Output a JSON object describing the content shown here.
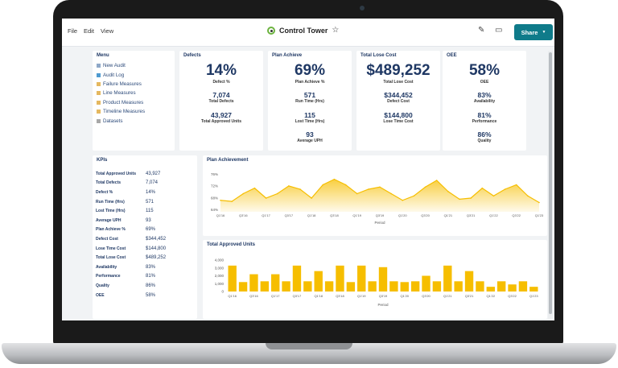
{
  "menubar": {
    "file": "File",
    "edit": "Edit",
    "view": "View"
  },
  "title": "Control Tower",
  "share_label": "Share",
  "sidebar": {
    "title": "Menu",
    "items": [
      {
        "label": "New Audit",
        "icon": "document-icon"
      },
      {
        "label": "Audit Log",
        "icon": "log-icon"
      },
      {
        "label": "Failure Measures",
        "icon": "folder-icon"
      },
      {
        "label": "Line Measures",
        "icon": "folder-icon"
      },
      {
        "label": "Product Measures",
        "icon": "folder-icon"
      },
      {
        "label": "Timeline Measures",
        "icon": "folder-icon"
      },
      {
        "label": "Datasets",
        "icon": "folder-icon"
      }
    ]
  },
  "cards": {
    "defects": {
      "title": "Defects",
      "main": "14%",
      "main_label": "Defect %",
      "sub1": "7,074",
      "sub1_label": "Total Defects",
      "sub2": "43,927",
      "sub2_label": "Total Approved Units"
    },
    "plan": {
      "title": "Plan Achieve",
      "main": "69%",
      "main_label": "Plan Achieve %",
      "sub1": "571",
      "sub1_label": "Run Time (Hrs)",
      "sub2": "115",
      "sub2_label": "Lost Time (Hrs)",
      "sub3": "93",
      "sub3_label": "Average UPH"
    },
    "cost": {
      "title": "Total Lose Cost",
      "main": "$489,252",
      "main_label": "Total Lose Cost",
      "sub1": "$344,452",
      "sub1_label": "Defect Cost",
      "sub2": "$144,800",
      "sub2_label": "Lose Time Cost"
    },
    "oee": {
      "title": "OEE",
      "main": "58%",
      "main_label": "OEE",
      "sub1": "83%",
      "sub1_label": "Availability",
      "sub2": "81%",
      "sub2_label": "Performance",
      "sub3": "86%",
      "sub3_label": "Quality"
    }
  },
  "kpis": {
    "title": "KPIs",
    "rows": [
      {
        "label": "Total Approved Units",
        "value": "43,927"
      },
      {
        "label": "Total Defects",
        "value": "7,074"
      },
      {
        "label": "Defect %",
        "value": "14%"
      },
      {
        "label": "Run Time (Hrs)",
        "value": "571"
      },
      {
        "label": "Lost Time (Hrs)",
        "value": "115"
      },
      {
        "label": "Average UPH",
        "value": "93"
      },
      {
        "label": "Plan Achieve %",
        "value": "69%"
      },
      {
        "label": "Defect Cost",
        "value": "$344,452"
      },
      {
        "label": "Lose Time Cost",
        "value": "$144,800"
      },
      {
        "label": "Total Lose Cost",
        "value": "$489,252"
      },
      {
        "label": "Availability",
        "value": "83%"
      },
      {
        "label": "Performance",
        "value": "81%"
      },
      {
        "label": "Quality",
        "value": "86%"
      },
      {
        "label": "OEE",
        "value": "58%"
      }
    ]
  },
  "colors": {
    "accent": "#0f7b8a",
    "chart": "#f6be00",
    "navy": "#1f3864"
  },
  "chart_data": [
    {
      "type": "area",
      "title": "Plan Achievement",
      "xlabel": "Period",
      "ylabel": "",
      "yticks": [
        "76%",
        "72%",
        "68%",
        "64%"
      ],
      "ylim": [
        62,
        78
      ],
      "categories": [
        "Q1'16",
        "Q2'16",
        "Q3'16",
        "Q4'16",
        "Q1'17",
        "Q2'17",
        "Q3'17",
        "Q4'17",
        "Q1'18",
        "Q2'18",
        "Q3'18",
        "Q4'18",
        "Q1'19",
        "Q2'19",
        "Q3'19",
        "Q4'19",
        "Q1'20",
        "Q2'20",
        "Q3'20",
        "Q4'20",
        "Q1'21",
        "Q2'21",
        "Q3'21",
        "Q4'21",
        "Q1'22",
        "Q2'22",
        "Q3'22",
        "Q4'22",
        "Q1'23"
      ],
      "xticklabels": [
        "Q1'16",
        "Q3'16",
        "Q1'17",
        "Q3'17",
        "Q1'18",
        "Q3'18",
        "Q1'19",
        "Q3'19",
        "Q1'20",
        "Q3'20",
        "Q1'21",
        "Q3'21",
        "Q1'22",
        "Q3'22",
        "Q1'23"
      ],
      "values": [
        65,
        64.5,
        68,
        70.5,
        66,
        68,
        71.5,
        70,
        66,
        72,
        74.5,
        72,
        68,
        70,
        71,
        68,
        65,
        67,
        71,
        74,
        69,
        65.5,
        66,
        70.5,
        67,
        70,
        72,
        67,
        64
      ]
    },
    {
      "type": "bar",
      "title": "Total Approved Units",
      "xlabel": "Period",
      "ylabel": "",
      "yticks": [
        "4,000",
        "3,000",
        "2,000",
        "1,000",
        "0"
      ],
      "ylim": [
        0,
        4000
      ],
      "categories": [
        "Q1'16",
        "Q2'16",
        "Q3'16",
        "Q4'16",
        "Q1'17",
        "Q2'17",
        "Q3'17",
        "Q4'17",
        "Q1'18",
        "Q2'18",
        "Q3'18",
        "Q4'18",
        "Q1'19",
        "Q2'19",
        "Q3'19",
        "Q4'19",
        "Q1'20",
        "Q2'20",
        "Q3'20",
        "Q4'20",
        "Q1'21",
        "Q2'21",
        "Q3'21",
        "Q4'21",
        "Q1'22",
        "Q2'22",
        "Q3'22",
        "Q4'22",
        "Q1'23"
      ],
      "xticklabels": [
        "Q1'16",
        "Q3'16",
        "Q1'17",
        "Q3'17",
        "Q1'18",
        "Q3'18",
        "Q1'19",
        "Q3'19",
        "Q1'20",
        "Q3'20",
        "Q1'21",
        "Q3'21",
        "Q1'22",
        "Q3'22",
        "Q1'23"
      ],
      "values": [
        3300,
        1200,
        2200,
        1300,
        2200,
        1300,
        3300,
        1300,
        2600,
        1300,
        3300,
        1200,
        3300,
        1300,
        3100,
        1300,
        1200,
        1300,
        2000,
        1300,
        3300,
        1300,
        2600,
        1300,
        600,
        1300,
        900,
        1300,
        600
      ]
    }
  ]
}
